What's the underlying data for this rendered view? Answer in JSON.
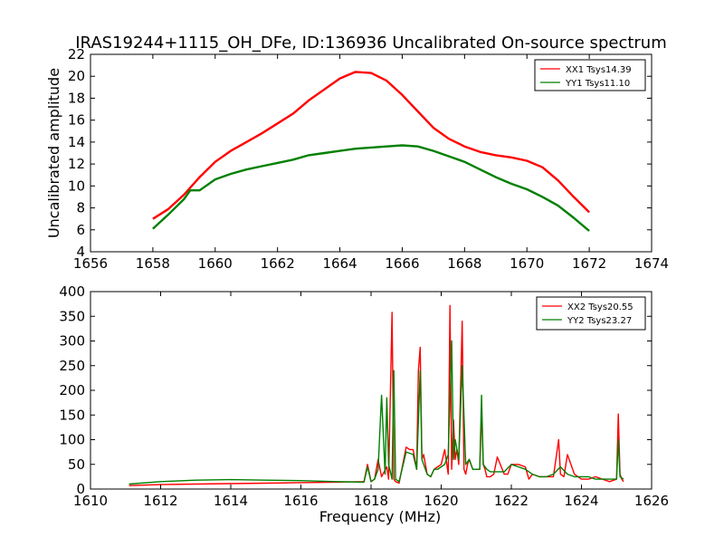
{
  "figure_title": "IRAS19244+1115_OH_DFe, ID:136936 Uncalibrated On-source spectrum",
  "colors": {
    "red": "#ff0000",
    "green": "#008000"
  },
  "chart_data": [
    {
      "type": "line",
      "ylabel": "Uncalibrated amplitude",
      "xlabel": "",
      "xlim": [
        1656,
        1674
      ],
      "ylim": [
        4,
        22
      ],
      "xticks": [
        1656,
        1658,
        1660,
        1662,
        1664,
        1666,
        1668,
        1670,
        1672,
        1674
      ],
      "yticks": [
        4,
        6,
        8,
        10,
        12,
        14,
        16,
        18,
        20,
        22
      ],
      "legend_position": "top-right",
      "series": [
        {
          "name": "XX1 Tsys14.39",
          "color": "#ff0000",
          "x": [
            1658.0,
            1658.5,
            1659.0,
            1659.5,
            1660.0,
            1660.5,
            1661.0,
            1661.5,
            1662.0,
            1662.5,
            1663.0,
            1663.5,
            1664.0,
            1664.5,
            1665.0,
            1665.5,
            1666.0,
            1666.5,
            1667.0,
            1667.5,
            1668.0,
            1668.5,
            1669.0,
            1669.5,
            1670.0,
            1670.5,
            1671.0,
            1671.5,
            1672.0
          ],
          "y": [
            7.0,
            7.9,
            9.2,
            10.8,
            12.2,
            13.2,
            14.0,
            14.8,
            15.7,
            16.6,
            17.8,
            18.8,
            19.8,
            20.4,
            20.3,
            19.6,
            18.3,
            16.8,
            15.3,
            14.3,
            13.6,
            13.1,
            12.8,
            12.6,
            12.3,
            11.7,
            10.5,
            9.0,
            7.6
          ]
        },
        {
          "name": "YY1 Tsys11.10",
          "color": "#008000",
          "x": [
            1658.0,
            1658.5,
            1659.0,
            1659.2,
            1659.5,
            1660.0,
            1660.5,
            1661.0,
            1661.5,
            1662.0,
            1662.5,
            1663.0,
            1663.5,
            1664.0,
            1664.5,
            1665.0,
            1665.5,
            1666.0,
            1666.5,
            1667.0,
            1667.5,
            1668.0,
            1668.5,
            1669.0,
            1669.5,
            1670.0,
            1670.5,
            1671.0,
            1671.5,
            1672.0
          ],
          "y": [
            6.1,
            7.4,
            8.8,
            9.6,
            9.6,
            10.6,
            11.1,
            11.5,
            11.8,
            12.1,
            12.4,
            12.8,
            13.0,
            13.2,
            13.4,
            13.5,
            13.6,
            13.7,
            13.6,
            13.2,
            12.7,
            12.2,
            11.5,
            10.8,
            10.2,
            9.7,
            9.0,
            8.2,
            7.1,
            5.9
          ]
        }
      ]
    },
    {
      "type": "line",
      "ylabel": "",
      "xlabel": "Frequency (MHz)",
      "xlim": [
        1610,
        1626
      ],
      "ylim": [
        0,
        400
      ],
      "xticks": [
        1610,
        1612,
        1614,
        1616,
        1618,
        1620,
        1622,
        1624,
        1626
      ],
      "yticks": [
        0,
        50,
        100,
        150,
        200,
        250,
        300,
        350,
        400
      ],
      "legend_position": "top-right",
      "series": [
        {
          "name": "XX2 Tsys20.55",
          "color": "#ff0000",
          "x": [
            1611.1,
            1612.0,
            1613.0,
            1614.0,
            1615.0,
            1616.0,
            1617.0,
            1617.8,
            1617.9,
            1618.0,
            1618.1,
            1618.2,
            1618.3,
            1618.45,
            1618.5,
            1618.6,
            1618.65,
            1618.7,
            1618.8,
            1619.0,
            1619.1,
            1619.2,
            1619.3,
            1619.35,
            1619.4,
            1619.45,
            1619.5,
            1619.6,
            1619.7,
            1619.8,
            1619.9,
            1620.0,
            1620.1,
            1620.2,
            1620.25,
            1620.3,
            1620.35,
            1620.4,
            1620.45,
            1620.5,
            1620.6,
            1620.65,
            1620.7,
            1620.75,
            1620.8,
            1620.9,
            1621.0,
            1621.1,
            1621.15,
            1621.2,
            1621.25,
            1621.3,
            1621.4,
            1621.5,
            1621.6,
            1621.8,
            1621.9,
            1622.0,
            1622.2,
            1622.4,
            1622.5,
            1622.6,
            1622.8,
            1623.0,
            1623.2,
            1623.35,
            1623.4,
            1623.5,
            1623.6,
            1623.8,
            1624.0,
            1624.2,
            1624.4,
            1624.6,
            1624.8,
            1625.0,
            1625.05,
            1625.1,
            1625.15,
            1625.2
          ],
          "y": [
            7,
            9,
            10,
            11,
            12,
            13,
            14,
            15,
            50,
            15,
            20,
            60,
            25,
            45,
            20,
            358,
            20,
            15,
            12,
            85,
            80,
            80,
            40,
            240,
            287,
            60,
            70,
            30,
            25,
            40,
            45,
            50,
            80,
            30,
            372,
            40,
            140,
            60,
            80,
            50,
            340,
            40,
            30,
            50,
            60,
            40,
            40,
            40,
            160,
            50,
            40,
            25,
            25,
            30,
            65,
            30,
            30,
            50,
            50,
            45,
            20,
            30,
            25,
            25,
            25,
            100,
            30,
            25,
            70,
            30,
            20,
            20,
            25,
            20,
            15,
            20,
            152,
            30,
            20,
            15
          ]
        },
        {
          "name": "YY2 Tsys23.27",
          "color": "#008000",
          "x": [
            1611.1,
            1612.0,
            1613.0,
            1614.0,
            1615.0,
            1616.0,
            1617.0,
            1617.8,
            1617.9,
            1618.0,
            1618.1,
            1618.2,
            1618.3,
            1618.4,
            1618.45,
            1618.5,
            1618.6,
            1618.65,
            1618.7,
            1618.8,
            1619.0,
            1619.2,
            1619.3,
            1619.4,
            1619.45,
            1619.5,
            1619.6,
            1619.7,
            1619.8,
            1619.9,
            1620.0,
            1620.1,
            1620.2,
            1620.3,
            1620.35,
            1620.4,
            1620.5,
            1620.6,
            1620.7,
            1620.8,
            1620.9,
            1621.0,
            1621.1,
            1621.15,
            1621.2,
            1621.3,
            1621.4,
            1621.6,
            1621.8,
            1622.0,
            1622.2,
            1622.4,
            1622.6,
            1622.8,
            1623.0,
            1623.2,
            1623.4,
            1623.6,
            1623.8,
            1624.0,
            1624.2,
            1624.4,
            1624.6,
            1624.8,
            1625.0,
            1625.05,
            1625.1,
            1625.2
          ],
          "y": [
            10,
            15,
            18,
            19,
            18,
            17,
            15,
            14,
            45,
            15,
            20,
            40,
            190,
            30,
            185,
            50,
            20,
            240,
            20,
            15,
            75,
            70,
            40,
            240,
            60,
            50,
            30,
            25,
            40,
            40,
            45,
            50,
            70,
            300,
            60,
            100,
            60,
            250,
            50,
            60,
            40,
            40,
            40,
            190,
            50,
            40,
            35,
            35,
            35,
            50,
            45,
            40,
            30,
            25,
            25,
            30,
            45,
            30,
            25,
            25,
            25,
            20,
            20,
            20,
            20,
            100,
            25,
            20
          ]
        }
      ]
    }
  ]
}
